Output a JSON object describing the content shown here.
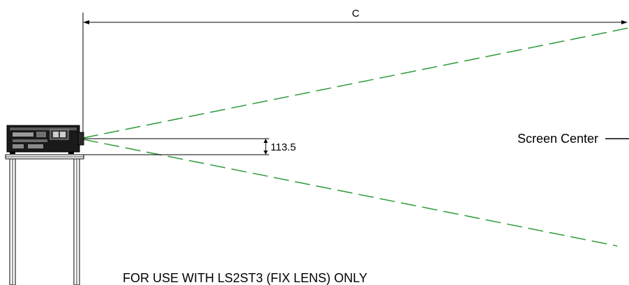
{
  "diagram": {
    "distance_label": "C",
    "offset_value": "113.5",
    "screen_center_label": "Screen Center",
    "note": "FOR USE WITH LS2ST3 (FIX LENS) ONLY"
  },
  "colors": {
    "beam": "#2e9a3a",
    "line": "#000000"
  }
}
